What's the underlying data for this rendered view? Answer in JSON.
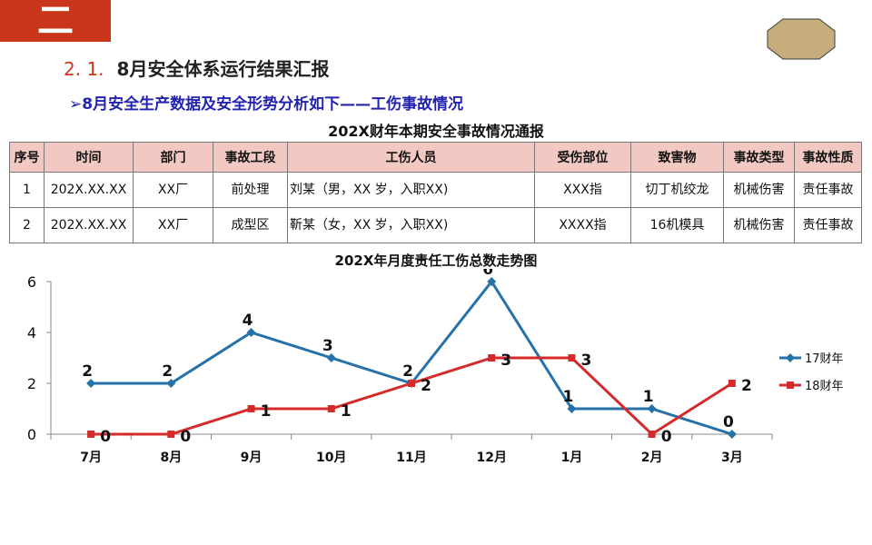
{
  "header": {
    "badge": "二",
    "section_number": "2. 1.",
    "section_title": "8月安全体系运行结果汇报",
    "subtitle": "➢8月安全生产数据及安全形势分析如下——工伤事故情况"
  },
  "table": {
    "title": "202X财年本期安全事故情况通报",
    "headers": [
      "序号",
      "时间",
      "部门",
      "事故工段",
      "工伤人员",
      "受伤部位",
      "致害物",
      "事故类型",
      "事故性质"
    ],
    "rows": [
      [
        "1",
        "202X.XX.XX",
        "XX厂",
        "前处理",
        "刘某（男，XX 岁，入职XX)",
        "XXX指",
        "切丁机绞龙",
        "机械伤害",
        "责任事故"
      ],
      [
        "2",
        "202X.XX.XX",
        "XX厂",
        "成型区",
        "靳某（女，XX 岁，入职XX)",
        "XXXX指",
        "16机模具",
        "机械伤害",
        "责任事故"
      ]
    ]
  },
  "colors": {
    "accent": "#c9361b",
    "series1": "#2672a8",
    "series2": "#d42a2a",
    "header_bg": "#f2c9c2",
    "oval": "#c7ad7b"
  },
  "chart_data": {
    "type": "line",
    "title": "202X年月度责任工伤总数走势图",
    "categories": [
      "7月",
      "8月",
      "9月",
      "10月",
      "11月",
      "12月",
      "1月",
      "2月",
      "3月"
    ],
    "series": [
      {
        "name": "17财年",
        "values": [
          2,
          2,
          4,
          3,
          2,
          6,
          1,
          1,
          0
        ]
      },
      {
        "name": "18财年",
        "values": [
          0,
          0,
          1,
          1,
          2,
          3,
          3,
          0,
          2
        ]
      }
    ],
    "ylim": [
      0,
      6
    ],
    "yticks": [
      0,
      2,
      4,
      6
    ],
    "grid": false,
    "legend": "right"
  }
}
